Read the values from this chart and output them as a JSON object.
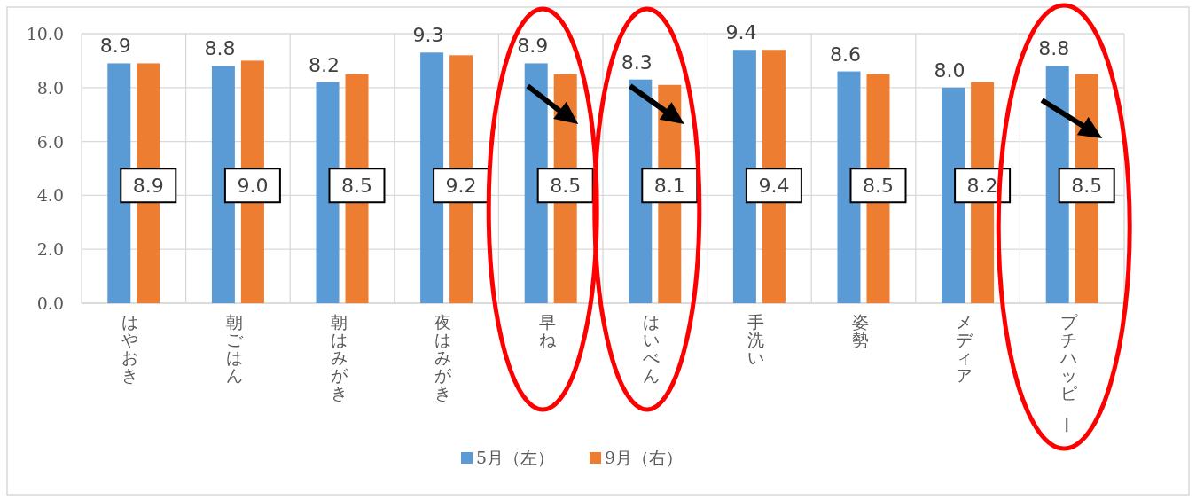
{
  "chart_data": {
    "type": "bar",
    "categories": [
      "はやおき",
      "朝ごはん",
      "朝はみがき",
      "夜はみがき",
      "早ね",
      "はいべん",
      "手洗い",
      "姿勢",
      "メディア",
      "プチハッピー"
    ],
    "series": [
      {
        "name": "5月（左）",
        "color": "#5b9bd5",
        "values": [
          8.9,
          8.8,
          8.2,
          9.3,
          8.9,
          8.3,
          9.4,
          8.6,
          8.0,
          8.8
        ],
        "value_labels": [
          "8.9",
          "8.8",
          "8.2",
          "9.3",
          "8.9",
          "8.3",
          "9.4",
          "8.6",
          "8.0",
          "8.8"
        ]
      },
      {
        "name": "9月（右）",
        "color": "#ed7d31",
        "values": [
          8.9,
          9.0,
          8.5,
          9.2,
          8.5,
          8.1,
          9.4,
          8.5,
          8.2,
          8.5
        ],
        "value_labels": [
          "8.9",
          "9.0",
          "8.5",
          "9.2",
          "8.5",
          "8.1",
          "9.4",
          "8.5",
          "8.2",
          "8.5"
        ]
      }
    ],
    "ylim": [
      0,
      10
    ],
    "yticks": [
      {
        "value": 0,
        "label": "0.0"
      },
      {
        "value": 2,
        "label": "2.0"
      },
      {
        "value": 4,
        "label": "4.0"
      },
      {
        "value": 6,
        "label": "6.0"
      },
      {
        "value": 8,
        "label": "8.0"
      },
      {
        "value": 10,
        "label": "10.0"
      }
    ],
    "grid": true,
    "legend": "bottom"
  }
}
